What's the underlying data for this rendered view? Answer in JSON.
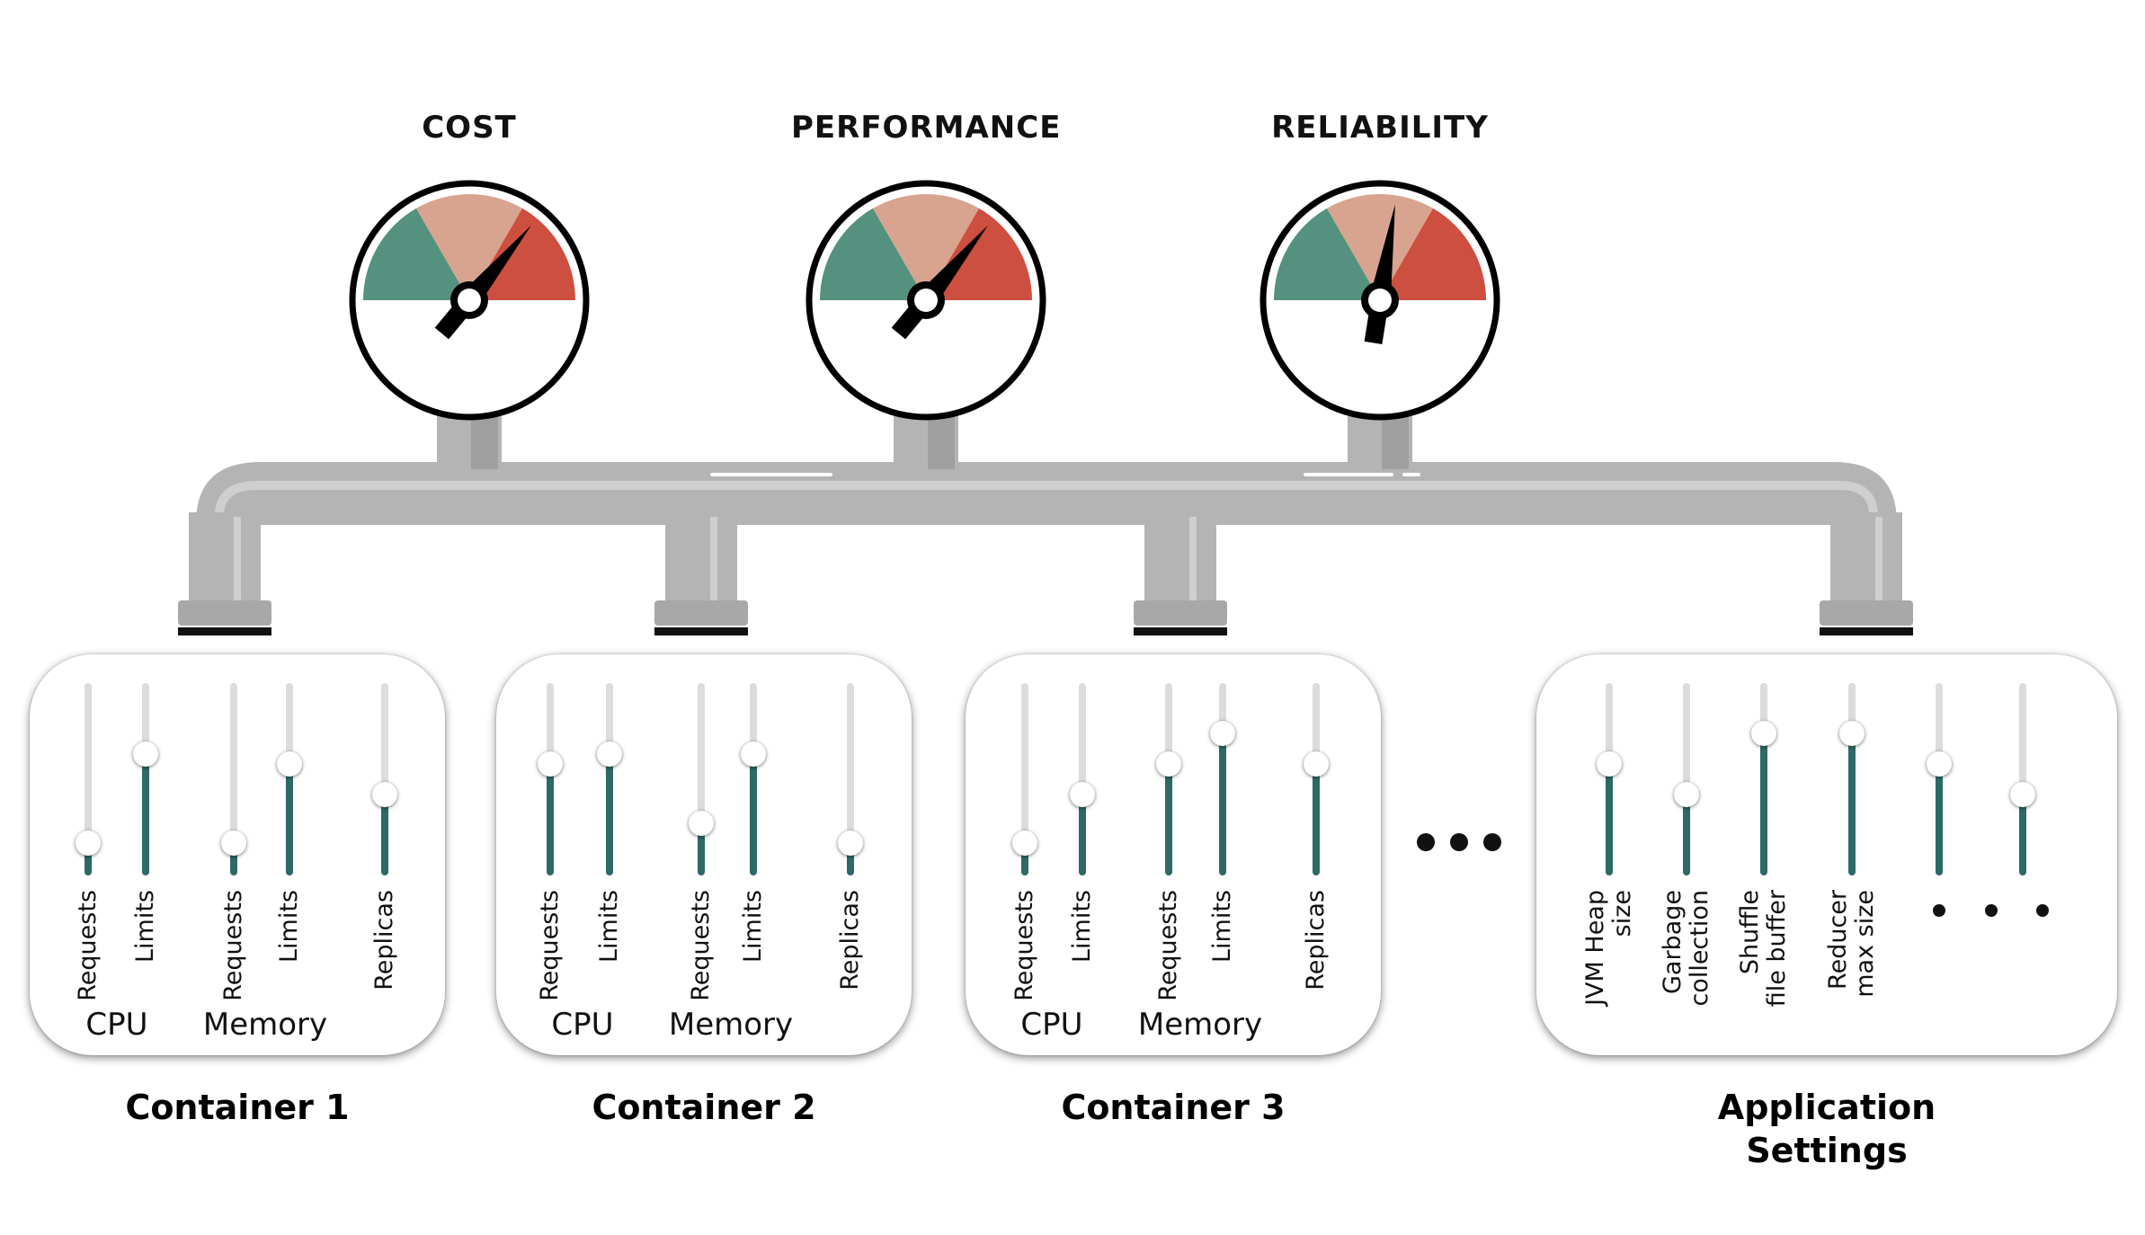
{
  "gauges": [
    {
      "title": "COST",
      "needle_level": 0.72
    },
    {
      "title": "PERFORMANCE",
      "needle_level": 0.72
    },
    {
      "title": "RELIABILITY",
      "needle_level": 0.55
    }
  ],
  "colors": {
    "green": "#54927f",
    "pink": "#d9a48f",
    "red": "#cd4f3f",
    "pipe": "#b4b4b4",
    "pipe_light": "#cfcfcf",
    "slider_fill": "#2d6a66",
    "slider_track": "#dcdcdc"
  },
  "panels": [
    {
      "title": [
        "Container 1"
      ],
      "groups": [
        "CPU",
        "Memory"
      ],
      "sliders": [
        {
          "label": [
            "Requests"
          ],
          "value": 0.17
        },
        {
          "label": [
            "Limits"
          ],
          "value": 0.63
        },
        {
          "label": [
            "Requests"
          ],
          "value": 0.17
        },
        {
          "label": [
            "Limits"
          ],
          "value": 0.58
        },
        {
          "label": [
            "Replicas"
          ],
          "value": 0.42
        }
      ]
    },
    {
      "title": [
        "Container 2"
      ],
      "groups": [
        "CPU",
        "Memory"
      ],
      "sliders": [
        {
          "label": [
            "Requests"
          ],
          "value": 0.58
        },
        {
          "label": [
            "Limits"
          ],
          "value": 0.63
        },
        {
          "label": [
            "Requests"
          ],
          "value": 0.27
        },
        {
          "label": [
            "Limits"
          ],
          "value": 0.63
        },
        {
          "label": [
            "Replicas"
          ],
          "value": 0.17
        }
      ]
    },
    {
      "title": [
        "Container 3"
      ],
      "groups": [
        "CPU",
        "Memory"
      ],
      "sliders": [
        {
          "label": [
            "Requests"
          ],
          "value": 0.17
        },
        {
          "label": [
            "Limits"
          ],
          "value": 0.42
        },
        {
          "label": [
            "Requests"
          ],
          "value": 0.58
        },
        {
          "label": [
            "Limits"
          ],
          "value": 0.74
        },
        {
          "label": [
            "Replicas"
          ],
          "value": 0.58
        }
      ]
    },
    {
      "title": [
        "Application",
        "Settings"
      ],
      "groups": [],
      "sliders": [
        {
          "label": [
            "JVM Heap",
            "size"
          ],
          "value": 0.58
        },
        {
          "label": [
            "Garbage",
            "collection"
          ],
          "value": 0.42
        },
        {
          "label": [
            "Shuffle",
            "file buffer"
          ],
          "value": 0.74
        },
        {
          "label": [
            "Reducer",
            "max size"
          ],
          "value": 0.74
        },
        {
          "label": [],
          "value": 0.58
        },
        {
          "label": [],
          "value": 0.42
        }
      ]
    }
  ]
}
